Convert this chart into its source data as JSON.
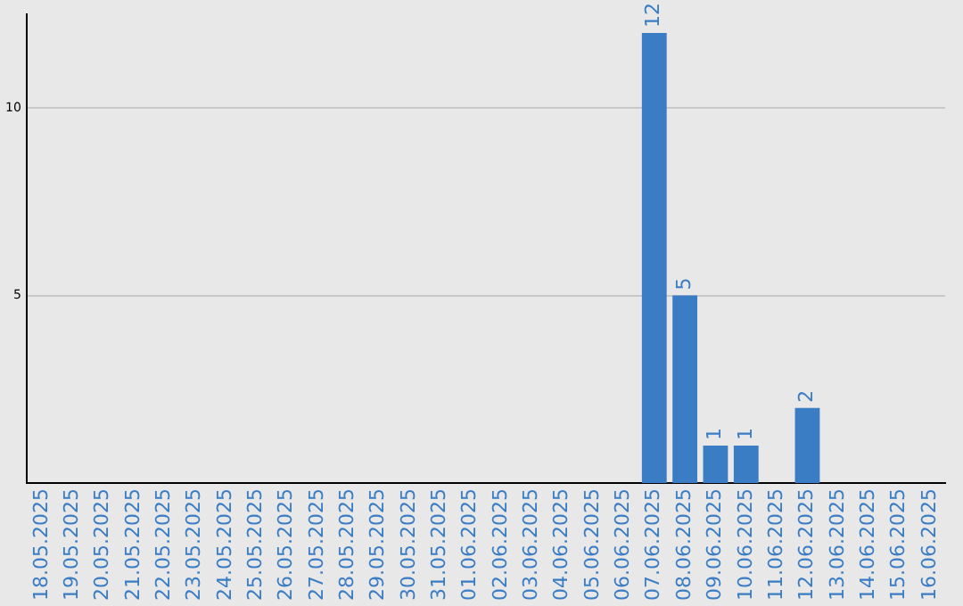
{
  "chart_data": {
    "type": "bar",
    "categories": [
      "18.05.2025",
      "19.05.2025",
      "20.05.2025",
      "21.05.2025",
      "22.05.2025",
      "23.05.2025",
      "24.05.2025",
      "25.05.2025",
      "26.05.2025",
      "27.05.2025",
      "28.05.2025",
      "29.05.2025",
      "30.05.2025",
      "31.05.2025",
      "01.06.2025",
      "02.06.2025",
      "03.06.2025",
      "04.06.2025",
      "05.06.2025",
      "06.06.2025",
      "07.06.2025",
      "08.06.2025",
      "09.06.2025",
      "10.06.2025",
      "11.06.2025",
      "12.06.2025",
      "13.06.2025",
      "14.06.2025",
      "15.06.2025",
      "16.06.2025"
    ],
    "values": [
      0,
      0,
      0,
      0,
      0,
      0,
      0,
      0,
      0,
      0,
      0,
      0,
      0,
      0,
      0,
      0,
      0,
      0,
      0,
      0,
      12,
      5,
      1,
      1,
      0,
      2,
      0,
      0,
      0,
      0
    ],
    "value_labels": [
      null,
      null,
      null,
      null,
      null,
      null,
      null,
      null,
      null,
      null,
      null,
      null,
      null,
      null,
      null,
      null,
      null,
      null,
      null,
      null,
      "12",
      "5",
      "1",
      "1",
      null,
      "2",
      null,
      null,
      null,
      null
    ],
    "color": "#3b7dc4",
    "ylim": [
      0,
      12.5
    ],
    "yticks": [
      5,
      10
    ],
    "grid": "y",
    "legend": false
  }
}
